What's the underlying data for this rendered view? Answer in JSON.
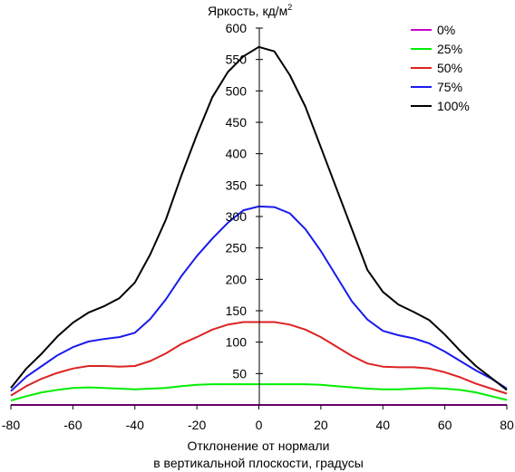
{
  "chart_data": {
    "type": "line",
    "y_title": {
      "main": "Яркость, кд/м",
      "superscript": "2"
    },
    "x_title": [
      "Отклонение от нормали",
      "в вертикальной плоскости, градусы"
    ],
    "xlim": [
      -80,
      80
    ],
    "ylim": [
      0,
      600
    ],
    "x_ticks": [
      -80,
      -60,
      -40,
      -20,
      0,
      20,
      40,
      60,
      80
    ],
    "y_ticks": [
      50,
      100,
      150,
      200,
      250,
      300,
      350,
      400,
      450,
      500,
      550,
      600
    ],
    "grid": false,
    "legend_position": "top-right",
    "x": [
      -80,
      -75,
      -70,
      -65,
      -60,
      -55,
      -50,
      -45,
      -40,
      -35,
      -30,
      -25,
      -20,
      -15,
      -10,
      -5,
      0,
      5,
      10,
      15,
      20,
      25,
      30,
      35,
      40,
      45,
      50,
      55,
      60,
      65,
      70,
      75,
      80
    ],
    "series": [
      {
        "name": "0%",
        "color": "#cc00cc",
        "values": [
          0,
          0,
          0,
          0,
          0,
          0,
          0,
          0,
          0,
          0,
          0,
          0,
          0,
          0,
          0,
          0,
          0,
          0,
          0,
          0,
          0,
          0,
          0,
          0,
          0,
          0,
          0,
          0,
          0,
          0,
          0,
          0,
          0
        ]
      },
      {
        "name": "25%",
        "color": "#00ee00",
        "values": [
          7,
          14,
          20,
          24,
          27,
          28,
          27,
          26,
          25,
          26,
          27,
          30,
          32,
          33,
          33,
          33,
          33,
          33,
          33,
          33,
          32,
          30,
          28,
          26,
          25,
          25,
          26,
          27,
          26,
          24,
          20,
          14,
          8
        ]
      },
      {
        "name": "50%",
        "color": "#dd2222",
        "values": [
          15,
          30,
          42,
          51,
          58,
          62,
          62,
          61,
          62,
          70,
          82,
          97,
          108,
          120,
          128,
          132,
          132,
          132,
          128,
          120,
          108,
          93,
          78,
          66,
          61,
          60,
          60,
          58,
          52,
          44,
          34,
          26,
          18
        ]
      },
      {
        "name": "75%",
        "color": "#1a1aee",
        "values": [
          22,
          45,
          62,
          79,
          92,
          101,
          105,
          108,
          115,
          137,
          168,
          205,
          237,
          265,
          290,
          310,
          316,
          315,
          305,
          280,
          245,
          205,
          165,
          136,
          118,
          111,
          106,
          98,
          85,
          70,
          55,
          42,
          26
        ]
      },
      {
        "name": "100%",
        "color": "#000000",
        "values": [
          27,
          58,
          82,
          109,
          131,
          147,
          157,
          170,
          195,
          240,
          295,
          365,
          430,
          490,
          530,
          555,
          570,
          563,
          525,
          475,
          410,
          345,
          280,
          215,
          180,
          160,
          148,
          135,
          112,
          86,
          62,
          43,
          24
        ]
      }
    ]
  }
}
